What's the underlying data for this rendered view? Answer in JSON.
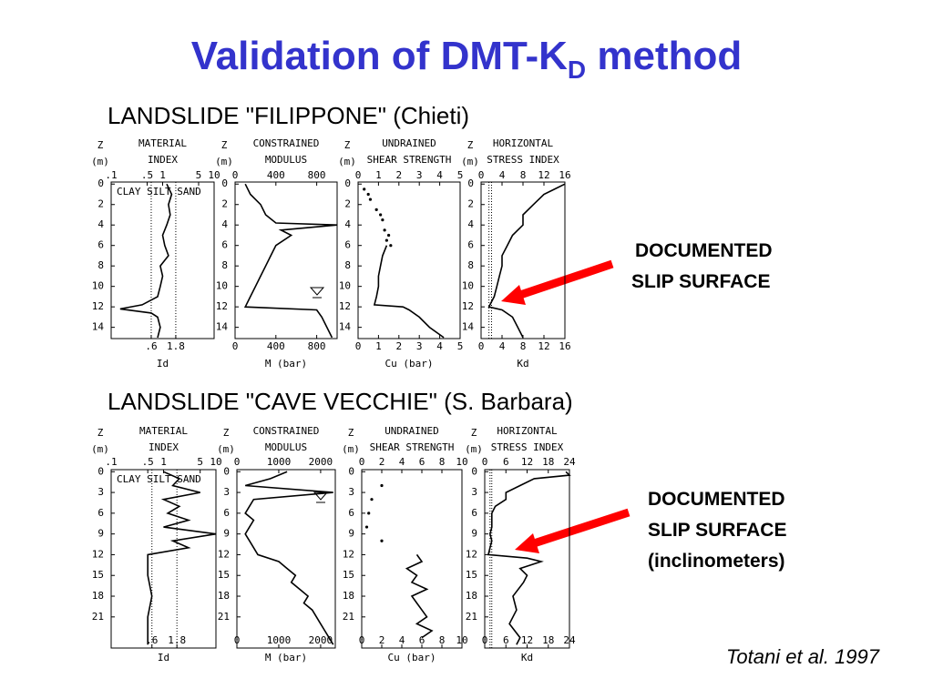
{
  "title": {
    "main": "Validation of DMT-K",
    "sub": "D",
    "rest": " method"
  },
  "figures": [
    {
      "heading": "LANDSLIDE \"FILIPPONE\" (Chieti)",
      "depth_label": [
        "Z",
        "(m)"
      ],
      "depth_ticks": [
        0,
        2,
        4,
        6,
        8,
        10,
        12,
        14
      ],
      "zlim": [
        -0.2,
        15.1
      ],
      "note": [
        "DOCUMENTED",
        "SLIP SURFACE"
      ],
      "panels": [
        {
          "title": [
            "MATERIAL",
            "INDEX"
          ],
          "log": true,
          "xlim": [
            0.1,
            10
          ],
          "top_ticks": [
            {
              "value": 0.1,
              "label": ".1"
            },
            {
              "value": 0.5,
              "label": ".5"
            },
            1,
            5,
            10
          ],
          "bottom_ticks": [
            {
              "value": 0.6,
              "label": ".6"
            },
            {
              "value": 1.8,
              "label": "1.8"
            }
          ],
          "guides": true,
          "soil_labels": "CLAY SILT SAND",
          "axis_label": "Id",
          "profile": {
            "z": [
              0,
              1,
              2,
              3,
              4,
              5,
              6,
              7,
              8,
              9,
              10,
              11,
              11.8,
              12.2,
              12.6,
              13,
              14,
              15
            ],
            "v": [
              1.2,
              1.5,
              1.3,
              1.4,
              1.2,
              1.0,
              1.1,
              1.3,
              0.9,
              1.0,
              0.9,
              0.8,
              0.4,
              0.15,
              0.6,
              0.8,
              0.9,
              0.8
            ]
          }
        },
        {
          "title": [
            "CONSTRAINED",
            "MODULUS"
          ],
          "xlim": [
            0,
            1000
          ],
          "top_ticks": [
            0,
            400,
            800
          ],
          "bottom_ticks": [
            0,
            400,
            800
          ],
          "axis_label": "M  (bar)",
          "profile": {
            "z": [
              0,
              1,
              2,
              3,
              3.8,
              4,
              4.5,
              5,
              6,
              7,
              8,
              9,
              10,
              11,
              12,
              12.3,
              13,
              14,
              15
            ],
            "v": [
              100,
              150,
              250,
              300,
              400,
              1000,
              450,
              550,
              400,
              350,
              300,
              250,
              200,
              150,
              100,
              800,
              850,
              900,
              950
            ]
          }
        },
        {
          "title": [
            "UNDRAINED",
            "SHEAR STRENGTH"
          ],
          "xlim": [
            0,
            5
          ],
          "top_ticks": [
            0,
            1,
            2,
            3,
            4,
            5
          ],
          "bottom_ticks": [
            0,
            1,
            2,
            3,
            4,
            5
          ],
          "axis_label": "Cu  (bar)",
          "points": {
            "z": [
              0.5,
              1,
              1.5,
              2.5,
              3,
              3.5,
              4.5,
              5,
              5.5,
              6
            ],
            "v": [
              0.3,
              0.5,
              0.6,
              0.9,
              1.1,
              1.2,
              1.3,
              1.5,
              1.4,
              1.6
            ]
          },
          "profile": {
            "z": [
              6,
              7,
              8,
              9,
              10,
              11,
              11.8,
              12,
              12.3,
              13,
              14,
              15
            ],
            "v": [
              1.4,
              1.2,
              1.1,
              1.0,
              1.0,
              0.9,
              0.8,
              2.2,
              2.5,
              3.0,
              3.5,
              4.2
            ]
          }
        },
        {
          "title": [
            "HORIZONTAL",
            "STRESS INDEX"
          ],
          "xlim": [
            0,
            16
          ],
          "top_ticks": [
            0,
            4,
            8,
            12,
            16
          ],
          "bottom_ticks": [
            0,
            4,
            8,
            12,
            16
          ],
          "axis_label": "Kd",
          "reference_lines": [
            1.5,
            2
          ],
          "profile": {
            "z": [
              0,
              0.5,
              1,
              2,
              3,
              4,
              5,
              6,
              7,
              8,
              9,
              10,
              11,
              11.5,
              12,
              12.3,
              13,
              14,
              15
            ],
            "v": [
              16,
              14,
              12,
              10,
              8,
              8,
              6,
              5,
              4,
              4,
              3.5,
              3,
              2.5,
              2,
              1.5,
              4,
              6,
              7,
              8
            ]
          }
        }
      ]
    },
    {
      "heading": "LANDSLIDE \"CAVE VECCHIE\" (S. Barbara)",
      "depth_label": [
        "Z",
        "(m)"
      ],
      "depth_ticks": [
        0,
        3,
        6,
        9,
        12,
        15,
        18,
        21
      ],
      "zlim": [
        -0.3,
        25.5
      ],
      "note": [
        "DOCUMENTED",
        "SLIP SURFACE",
        "(inclinometers)"
      ],
      "panels": [
        {
          "title": [
            "MATERIAL",
            "INDEX"
          ],
          "log": true,
          "xlim": [
            0.1,
            10
          ],
          "top_ticks": [
            {
              "value": 0.1,
              "label": ".1"
            },
            {
              "value": 0.5,
              "label": ".5"
            },
            1,
            5,
            10
          ],
          "bottom_ticks": [
            {
              "value": 0.6,
              "label": ".6"
            },
            {
              "value": 1.8,
              "label": "1.8"
            }
          ],
          "guides": true,
          "soil_labels": "CLAY SILT SAND",
          "axis_label": "Id",
          "profile": {
            "z": [
              0,
              1,
              2,
              3,
              4,
              5,
              6,
              7,
              8,
              9,
              10,
              11,
              12,
              13,
              15,
              18,
              21,
              24,
              25
            ],
            "v": [
              1,
              2,
              1.5,
              5,
              1,
              2,
              1.2,
              3,
              1,
              10,
              1.5,
              3,
              0.5,
              0.5,
              0.5,
              0.6,
              0.5,
              0.5,
              0.5
            ]
          }
        },
        {
          "title": [
            "CONSTRAINED",
            "MODULUS"
          ],
          "xlim": [
            0,
            2350
          ],
          "top_ticks": [
            0,
            1000,
            2000
          ],
          "bottom_ticks": [
            0,
            1000,
            2000
          ],
          "axis_label": "M  (bar)",
          "profile": {
            "z": [
              0,
              1,
              2,
              3,
              4,
              5,
              6,
              7,
              8,
              9,
              10,
              11,
              12,
              13,
              14,
              15,
              16,
              17,
              18,
              19,
              20,
              21,
              22,
              23,
              24,
              25
            ],
            "v": [
              1200,
              800,
              200,
              2300,
              400,
              300,
              200,
              400,
              300,
              200,
              300,
              400,
              500,
              1000,
              1200,
              1400,
              1300,
              1500,
              1700,
              1600,
              1800,
              1900,
              2000,
              2100,
              2200,
              2300
            ]
          }
        },
        {
          "title": [
            "UNDRAINED",
            "SHEAR STRENGTH"
          ],
          "xlim": [
            0,
            10
          ],
          "top_ticks": [
            0,
            2,
            4,
            6,
            8,
            10
          ],
          "bottom_ticks": [
            0,
            2,
            4,
            6,
            8,
            10
          ],
          "axis_label": "Cu  (bar)",
          "points": {
            "z": [
              2,
              4,
              6,
              8,
              10
            ],
            "v": [
              2,
              1,
              0.7,
              0.5,
              2
            ]
          },
          "profile": {
            "z": [
              12,
              13,
              14,
              15,
              16,
              17,
              18,
              19,
              20,
              21,
              22,
              23,
              24
            ],
            "v": [
              5.5,
              6,
              4.5,
              5.5,
              5,
              6.5,
              5,
              5.5,
              6,
              6.5,
              5.5,
              7,
              6
            ]
          }
        },
        {
          "title": [
            "HORIZONTAL",
            "STRESS INDEX"
          ],
          "xlim": [
            0,
            24
          ],
          "top_ticks": [
            0,
            6,
            12,
            18,
            24
          ],
          "bottom_ticks": [
            0,
            6,
            12,
            18,
            24
          ],
          "axis_label": "Kd",
          "reference_lines": [
            1.5,
            2
          ],
          "profile": {
            "z": [
              0,
              0.5,
              1,
              2,
              3,
              4,
              5,
              6,
              8,
              9,
              10,
              11,
              12,
              12.5,
              13,
              14,
              15,
              16,
              18,
              20,
              22,
              24,
              25
            ],
            "v": [
              23,
              24,
              14,
              10,
              6,
              6,
              3,
              2,
              2,
              1.5,
              2,
              1.5,
              1,
              12,
              16,
              10,
              12,
              11,
              8,
              9,
              7,
              10,
              9
            ]
          }
        }
      ]
    }
  ],
  "citation": "Totani et al. 1997"
}
